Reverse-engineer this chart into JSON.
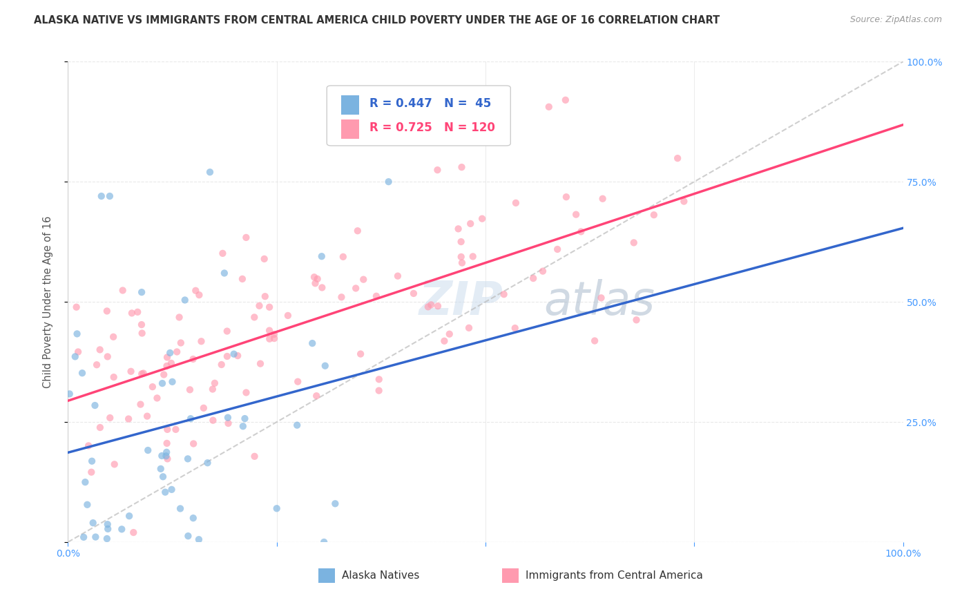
{
  "title": "ALASKA NATIVE VS IMMIGRANTS FROM CENTRAL AMERICA CHILD POVERTY UNDER THE AGE OF 16 CORRELATION CHART",
  "source": "Source: ZipAtlas.com",
  "ylabel": "Child Poverty Under the Age of 16",
  "legend_blue_r": "R = 0.447",
  "legend_blue_n": "N =  45",
  "legend_pink_r": "R = 0.725",
  "legend_pink_n": "N = 120",
  "legend_blue_label": "Alaska Natives",
  "legend_pink_label": "Immigrants from Central America",
  "watermark_part1": "ZIP",
  "watermark_part2": "atlas",
  "blue_scatter_color": "#7BB3E0",
  "pink_scatter_color": "#FF9AAF",
  "trend_line_blue_color": "#3366CC",
  "trend_line_pink_color": "#FF4477",
  "trend_line_gray_color": "#BBBBBB",
  "background_color": "#FFFFFF",
  "grid_color": "#E8E8E8",
  "title_color": "#333333",
  "axis_tick_color": "#4499FF",
  "blue_R": 0.447,
  "blue_N": 45,
  "pink_R": 0.725,
  "pink_N": 120,
  "xlim": [
    0.0,
    1.0
  ],
  "ylim": [
    0.0,
    1.0
  ],
  "blue_seed": 12,
  "pink_seed": 99
}
